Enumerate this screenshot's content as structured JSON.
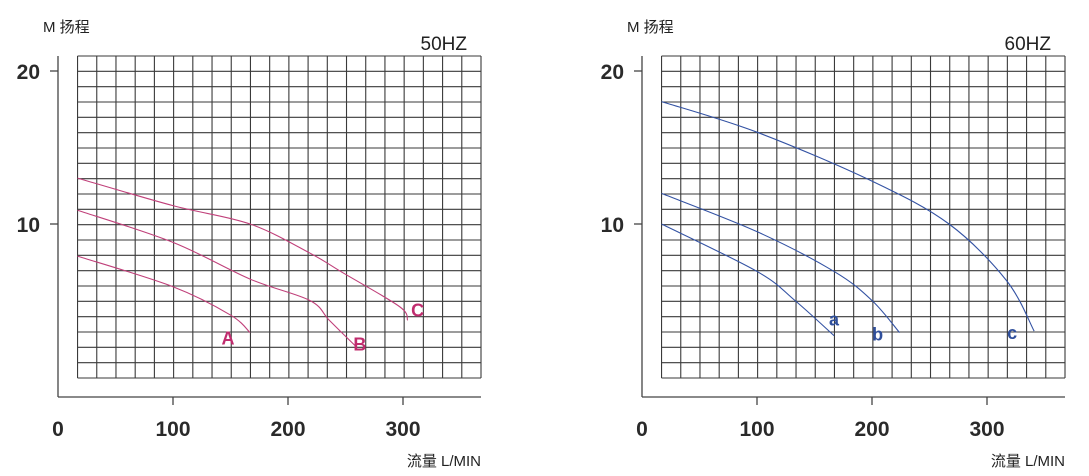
{
  "chart_data": [
    {
      "type": "line",
      "title": "50HZ",
      "ylabel": "M 扬程",
      "xlabel": "流量 L/MIN",
      "x_ticks": [
        "0",
        "100",
        "200",
        "300"
      ],
      "y_ticks": [
        "10",
        "20"
      ],
      "xlim": [
        0,
        367
      ],
      "ylim": [
        0,
        21
      ],
      "grid": true,
      "color": "#c0407a",
      "label_color": "#c02c6e",
      "series": [
        {
          "name": "A",
          "points": [
            [
              17,
              7.9
            ],
            [
              100,
              5.9
            ],
            [
              150,
              4.05
            ],
            [
              167,
              2.9
            ]
          ]
        },
        {
          "name": "B",
          "points": [
            [
              17,
              10.9
            ],
            [
              100,
              8.8
            ],
            [
              167,
              6.4
            ],
            [
              219,
              5.0
            ],
            [
              236,
              3.7
            ],
            [
              259,
              2.0
            ]
          ]
        },
        {
          "name": "C",
          "points": [
            [
              17,
              13.0
            ],
            [
              100,
              11.2
            ],
            [
              167,
              10.0
            ],
            [
              219,
              8.1
            ],
            [
              248,
              6.8
            ],
            [
              297,
              4.6
            ],
            [
              304,
              3.7
            ]
          ]
        }
      ]
    },
    {
      "type": "line",
      "title": "60HZ",
      "ylabel": "M 扬程",
      "xlabel": "流量 L/MIN",
      "x_ticks": [
        "0",
        "100",
        "200",
        "300"
      ],
      "y_ticks": [
        "10",
        "20"
      ],
      "xlim": [
        0,
        367
      ],
      "ylim": [
        0,
        21
      ],
      "grid": true,
      "color": "#3352a3",
      "label_color": "#2f4f9c",
      "series": [
        {
          "name": "a",
          "points": [
            [
              17,
              10.0
            ],
            [
              100,
              6.9
            ],
            [
              133,
              5.0
            ],
            [
              167,
              2.7
            ]
          ]
        },
        {
          "name": "b",
          "points": [
            [
              17,
              12.0
            ],
            [
              100,
              9.5
            ],
            [
              167,
              6.9
            ],
            [
              200,
              5.0
            ],
            [
              224,
              2.9
            ]
          ]
        },
        {
          "name": "c",
          "points": [
            [
              17,
              18.0
            ],
            [
              100,
              16.0
            ],
            [
              200,
              12.8
            ],
            [
              267,
              10.0
            ],
            [
              317,
              6.3
            ],
            [
              341,
              3.0
            ]
          ]
        }
      ]
    }
  ]
}
